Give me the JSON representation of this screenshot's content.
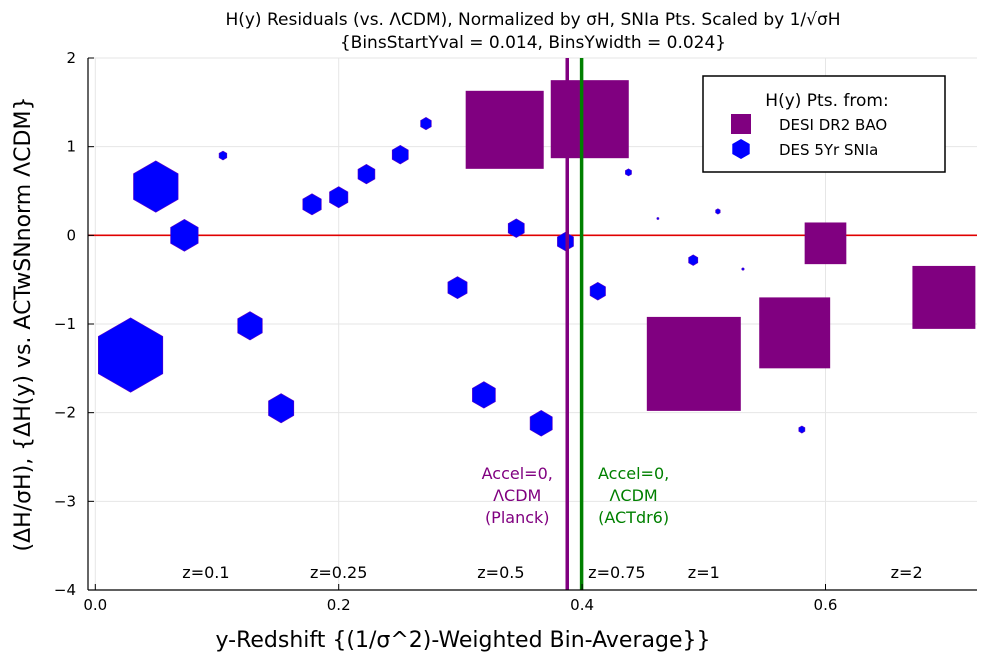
{
  "chart_data": {
    "type": "scatter",
    "title_line1": "H(y) Residuals (vs. ΛCDM), Normalized by σH, SNIa Pts. Scaled by 1/√σH",
    "title_line2": "{BinsStartYval = 0.014, BinsYwidth = 0.024}",
    "xlabel": "y-Redshift {(1/σ^2)-Weighted Bin-Average}}",
    "ylabel": "(ΔH/σH), {ΔH(y) vs. ACTwSNnorm ΛCDM}",
    "xlim": [
      -0.006,
      0.7245
    ],
    "ylim": [
      -4,
      2
    ],
    "xticks": [
      0.0,
      0.2,
      0.4,
      0.6
    ],
    "xtick_labels": [
      "0.0",
      "0.2",
      "0.4",
      "0.6"
    ],
    "yticks": [
      -4,
      -3,
      -2,
      -1,
      0,
      1,
      2
    ],
    "ytick_labels": [
      "−4",
      "−3",
      "−2",
      "−1",
      "0",
      "1",
      "2"
    ],
    "grid": true,
    "reference_line_y": 0,
    "colors": {
      "bao": "#800080",
      "sn": "#0000ff",
      "planck_line": "#800080",
      "act_line": "#008000",
      "zero_line": "#e00000"
    },
    "vlines": [
      {
        "x": 0.3878,
        "color": "#800080",
        "label": [
          "Accel=0,",
          "ΛCDM",
          "(Planck)"
        ]
      },
      {
        "x": 0.3996,
        "color": "#008000",
        "label": [
          "Accel=0,",
          "ΛCDM",
          "(ACTdr6)"
        ]
      }
    ],
    "z_labels": [
      {
        "text": "z=0.1",
        "y": 0.0909
      },
      {
        "text": "z=0.25",
        "y": 0.2
      },
      {
        "text": "z=0.5",
        "y": 0.3333
      },
      {
        "text": "z=0.75",
        "y": 0.4286
      },
      {
        "text": "z=1",
        "y": 0.5
      },
      {
        "text": "z=2",
        "y": 0.6667
      }
    ],
    "legend": {
      "title": "H(y) Pts. from:",
      "position": "top-right",
      "entries": [
        "DESI DR2 BAO",
        "DES 5Yr SNIa"
      ]
    },
    "series": [
      {
        "name": "DESI DR2 BAO",
        "marker": "square",
        "points": [
          {
            "x": 0.3364,
            "y": 1.19,
            "s": 0.88
          },
          {
            "x": 0.4063,
            "y": 1.31,
            "s": 0.88
          },
          {
            "x": 0.4918,
            "y": -1.45,
            "s": 1.06
          },
          {
            "x": 0.5747,
            "y": -1.1,
            "s": 0.8
          },
          {
            "x": 0.6,
            "y": -0.09,
            "s": 0.47
          },
          {
            "x": 0.6973,
            "y": -0.7,
            "s": 0.71
          }
        ]
      },
      {
        "name": "DES 5Yr SNIa",
        "marker": "hexagon",
        "points": [
          {
            "x": 0.029,
            "y": -1.35,
            "s": 0.84
          },
          {
            "x": 0.0497,
            "y": 0.55,
            "s": 0.58
          },
          {
            "x": 0.0732,
            "y": 0.0,
            "s": 0.36
          },
          {
            "x": 0.1049,
            "y": 0.9,
            "s": 0.1
          },
          {
            "x": 0.1271,
            "y": -1.02,
            "s": 0.32
          },
          {
            "x": 0.1527,
            "y": -1.95,
            "s": 0.33
          },
          {
            "x": 0.1781,
            "y": 0.35,
            "s": 0.24
          },
          {
            "x": 0.2,
            "y": 0.43,
            "s": 0.24
          },
          {
            "x": 0.2228,
            "y": 0.69,
            "s": 0.22
          },
          {
            "x": 0.2506,
            "y": 0.91,
            "s": 0.21
          },
          {
            "x": 0.2717,
            "y": 1.26,
            "s": 0.14
          },
          {
            "x": 0.2976,
            "y": -0.59,
            "s": 0.25
          },
          {
            "x": 0.3193,
            "y": -1.8,
            "s": 0.3
          },
          {
            "x": 0.3459,
            "y": 0.08,
            "s": 0.21
          },
          {
            "x": 0.3664,
            "y": -2.12,
            "s": 0.29
          },
          {
            "x": 0.3863,
            "y": -0.07,
            "s": 0.21
          },
          {
            "x": 0.4129,
            "y": -0.63,
            "s": 0.2
          },
          {
            "x": 0.4381,
            "y": 0.71,
            "s": 0.08
          },
          {
            "x": 0.4623,
            "y": 0.19,
            "s": 0.02
          },
          {
            "x": 0.4913,
            "y": -0.28,
            "s": 0.12
          },
          {
            "x": 0.5116,
            "y": 0.27,
            "s": 0.06
          },
          {
            "x": 0.5322,
            "y": -0.38,
            "s": 0.03
          },
          {
            "x": 0.5806,
            "y": -2.19,
            "s": 0.08
          }
        ]
      }
    ]
  }
}
